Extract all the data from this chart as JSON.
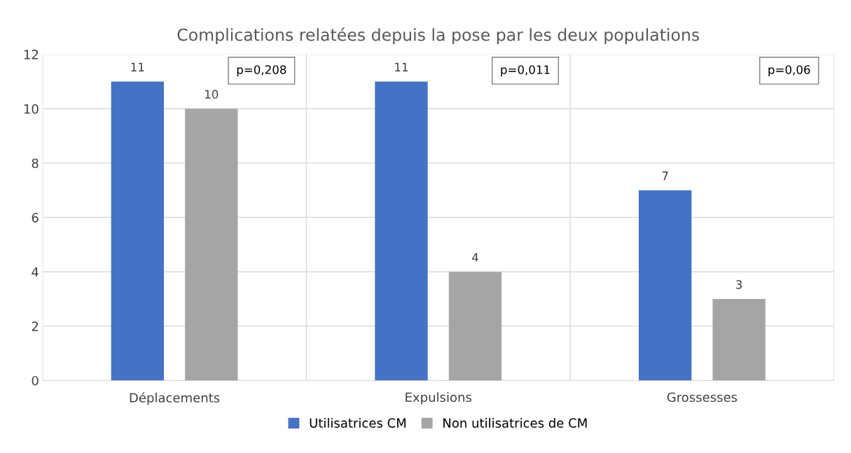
{
  "chart_data": {
    "type": "bar",
    "title": "Complications relatées depuis la pose par les deux populations",
    "categories": [
      "Déplacements",
      "Expulsions",
      "Grossesses"
    ],
    "series": [
      {
        "name": "Utilisatrices CM",
        "color": "#4472c4",
        "values": [
          11,
          11,
          7
        ]
      },
      {
        "name": "Non utilisatrices de CM",
        "color": "#a5a5a5",
        "values": [
          10,
          4,
          3
        ]
      }
    ],
    "ylim": [
      0,
      12
    ],
    "yticks": [
      0,
      2,
      4,
      6,
      8,
      10,
      12
    ],
    "grid": true,
    "legend": "bottom",
    "data_labels": true,
    "annotations": [
      "p=0,208",
      "p=0,011",
      "p=0,06"
    ]
  }
}
